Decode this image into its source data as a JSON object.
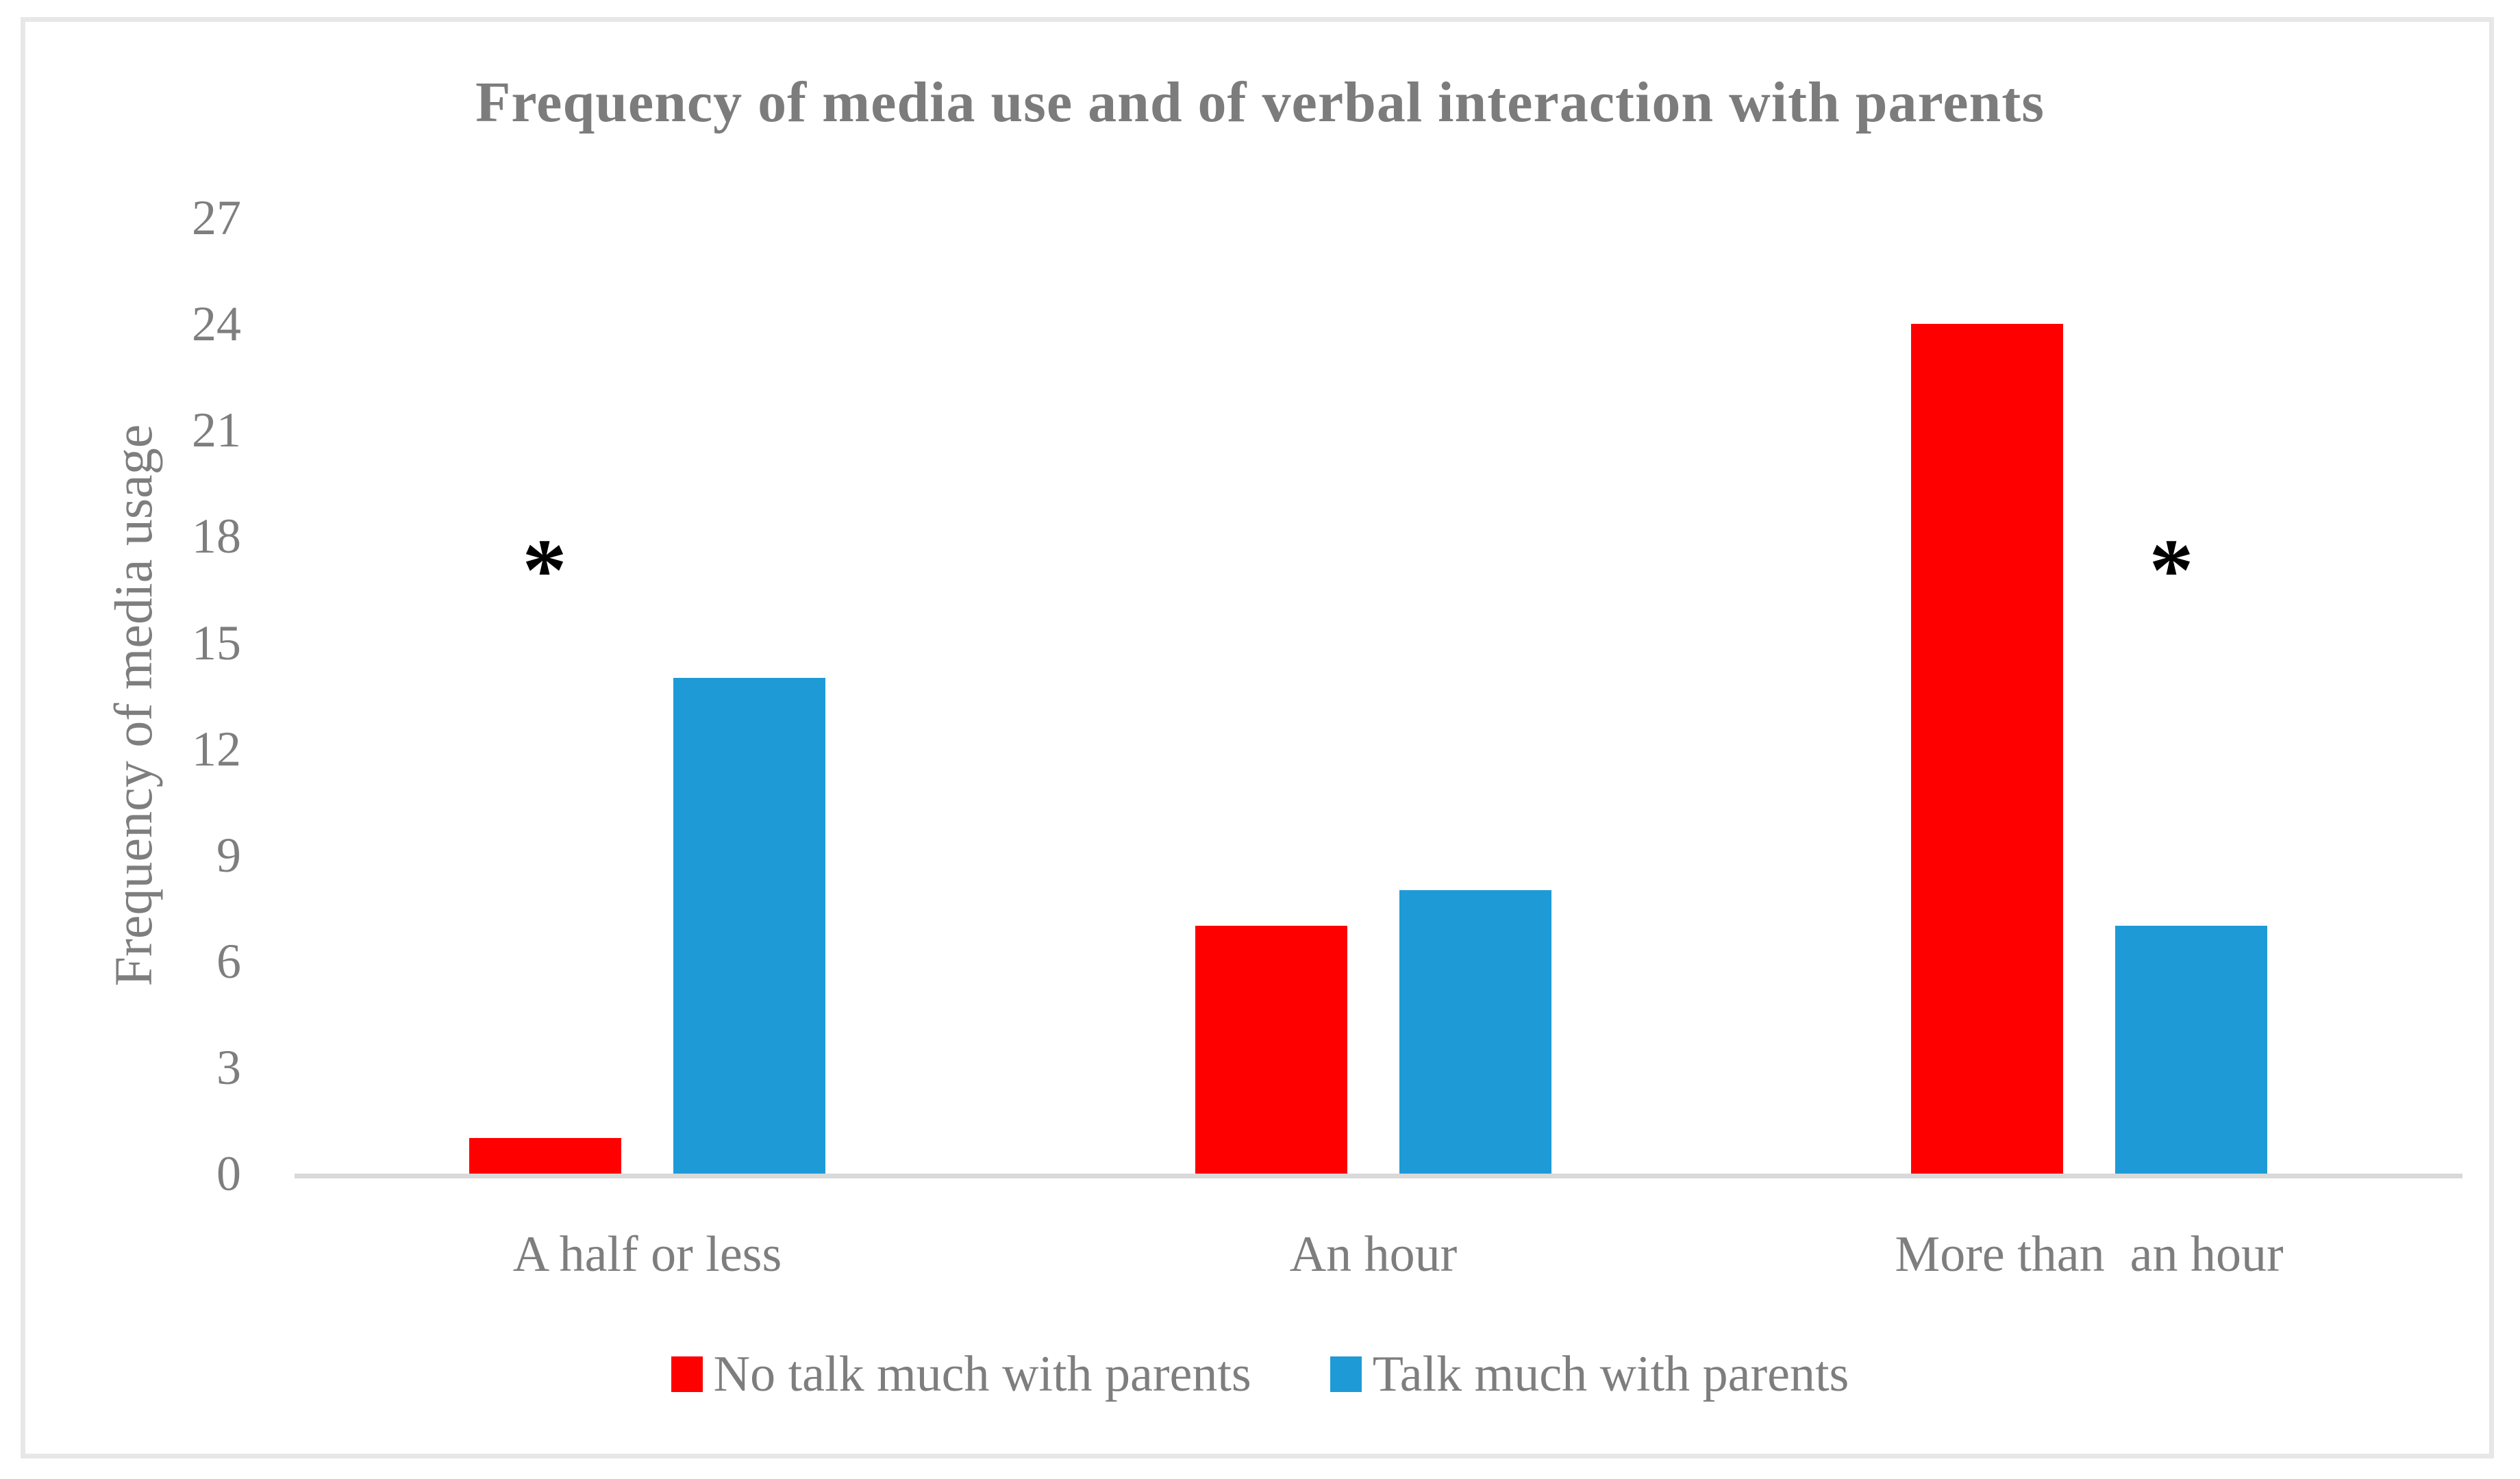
{
  "figure": {
    "title": "Frequency of media use and of verbal interaction with parents"
  },
  "chart_data": {
    "type": "bar",
    "title": "Frequency of media use and of verbal interaction with parents",
    "categories": [
      "A half or less",
      "An hour",
      "More than  an hour"
    ],
    "series": [
      {
        "name": "No talk much with parents",
        "color": "#FF0000",
        "values": [
          1,
          7,
          24
        ]
      },
      {
        "name": "Talk much with parents",
        "color": "#1E9BD7",
        "values": [
          14,
          8,
          7
        ]
      }
    ],
    "xlabel": "",
    "ylabel": "Frequency of media usage",
    "yticks": [
      0,
      3,
      6,
      9,
      12,
      15,
      18,
      21,
      24,
      27
    ],
    "ylim": [
      0,
      27
    ],
    "grid": false,
    "legend_position": "bottom",
    "annotations": [
      {
        "text": "*",
        "category_index": 0,
        "y_value": 17.4
      },
      {
        "text": "*",
        "category_index": 2,
        "y_value": 17.4
      }
    ]
  },
  "colors": {
    "series_no_talk": "#FF0000",
    "series_talk": "#1E9BD7",
    "text_gray": "#7E7E7E",
    "title_gray": "#7C7C7C",
    "axis_line": "#D9D9D9",
    "frame_border": "#E7E7E7",
    "annotation": "#000000"
  }
}
